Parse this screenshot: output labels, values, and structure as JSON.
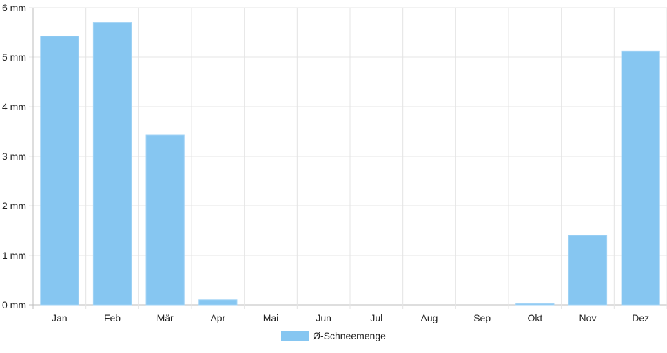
{
  "chart_data": {
    "type": "bar",
    "categories": [
      "Jan",
      "Feb",
      "Mär",
      "Apr",
      "Mai",
      "Jun",
      "Jul",
      "Aug",
      "Sep",
      "Okt",
      "Nov",
      "Dez"
    ],
    "series": [
      {
        "name": "Ø-Schneemenge",
        "values": [
          5.42,
          5.7,
          3.43,
          0.1,
          0,
          0,
          0,
          0,
          0,
          0.02,
          1.4,
          5.12
        ],
        "color": "#86c6f1"
      }
    ],
    "yticks": [
      "0 mm",
      "1 mm",
      "2 mm",
      "3 mm",
      "4 mm",
      "5 mm",
      "6 mm"
    ],
    "ylim": [
      0,
      6
    ],
    "grid": true,
    "legend_position": "bottom"
  }
}
